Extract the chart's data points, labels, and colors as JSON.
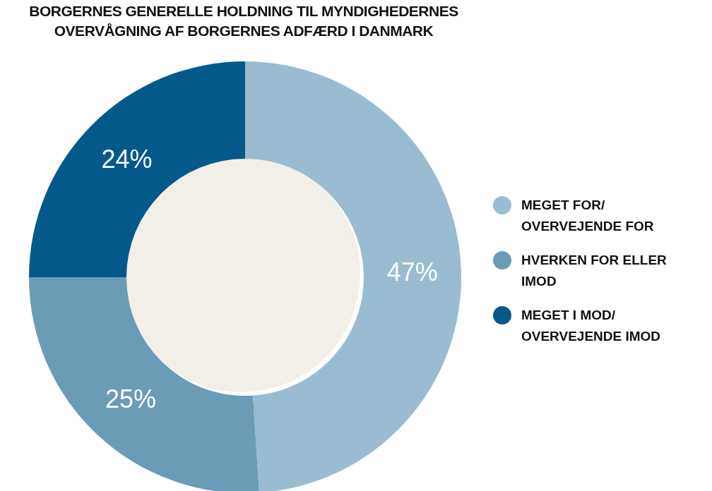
{
  "chart_data": {
    "type": "donut",
    "title": "BORGERNES GENERELLE HOLDNING TIL MYNDIGHEDERNES OVERVÅGNING AF BORGERNES ADFÆRD I DANMARK",
    "categories": [
      "MEGET FOR/ OVERVEJENDE FOR",
      "HVERKEN FOR ELLER IMOD",
      "MEGET I MOD/ OVERVEJENDE IMOD"
    ],
    "values": [
      47,
      25,
      24
    ],
    "value_labels": [
      "47%",
      "25%",
      "24%"
    ],
    "colors": [
      "#9abcd0",
      "#6a9cb8",
      "#04598a"
    ],
    "legend": "right"
  }
}
